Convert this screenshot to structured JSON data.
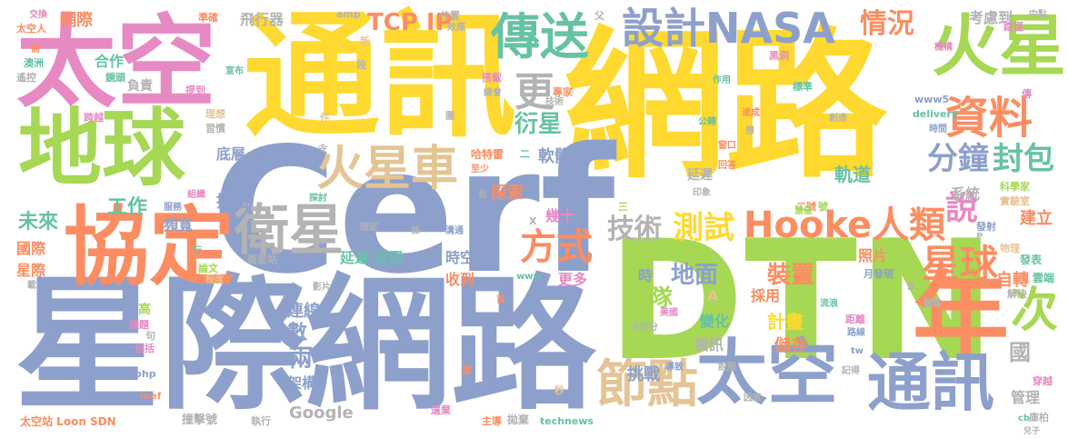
{
  "palette": {
    "green": "#a6d854",
    "blue": "#8da0cb",
    "yellow": "#ffd92f",
    "orange": "#fc8d62",
    "pink": "#e78ac3",
    "teal": "#66c2a5",
    "tan": "#e5c494",
    "gray": "#b3b3b3"
  },
  "words": [
    {
      "text": "網路",
      "color": "yellow"
    },
    {
      "text": "星際網路",
      "color": "blue"
    },
    {
      "text": "通訊",
      "color": "yellow"
    },
    {
      "text": "Cerf",
      "color": "blue"
    },
    {
      "text": "太空",
      "color": "pink"
    },
    {
      "text": "DTN",
      "color": "green"
    },
    {
      "text": "地球",
      "color": "green"
    },
    {
      "text": "年",
      "color": "orange"
    },
    {
      "text": "協定",
      "color": "orange"
    },
    {
      "text": "火星",
      "color": "green"
    },
    {
      "text": "太空",
      "color": "blue"
    },
    {
      "text": "通訊",
      "color": "blue"
    },
    {
      "text": "設計NASA",
      "color": "blue"
    },
    {
      "text": "傳送",
      "color": "teal"
    },
    {
      "text": "資料",
      "color": "orange"
    },
    {
      "text": "火星車",
      "color": "tan"
    },
    {
      "text": "衛星",
      "color": "gray"
    },
    {
      "text": "Hooke",
      "color": "orange"
    },
    {
      "text": "人類",
      "color": "orange"
    },
    {
      "text": "節點",
      "color": "tan"
    },
    {
      "text": "次",
      "color": "green"
    },
    {
      "text": "星球",
      "color": "orange"
    },
    {
      "text": "說",
      "color": "pink"
    },
    {
      "text": "情況",
      "color": "orange"
    },
    {
      "text": "封包",
      "color": "teal"
    },
    {
      "text": "分鐘",
      "color": "blue"
    },
    {
      "text": "方式",
      "color": "orange"
    },
    {
      "text": "測試",
      "color": "yellow"
    },
    {
      "text": "技術",
      "color": "gray"
    },
    {
      "text": "TCP IP",
      "color": "orange"
    },
    {
      "text": "更",
      "color": "gray"
    },
    {
      "text": "衍星",
      "color": "teal"
    },
    {
      "text": "團隊",
      "color": "green"
    },
    {
      "text": "裝置",
      "color": "orange"
    },
    {
      "text": "地面",
      "color": "blue"
    },
    {
      "text": "未來",
      "color": "teal"
    },
    {
      "text": "工作",
      "color": "teal"
    },
    {
      "text": "頻寬",
      "color": "blue"
    },
    {
      "text": "底層",
      "color": "blue"
    },
    {
      "text": "協定",
      "color": "blue"
    },
    {
      "text": "軟體",
      "color": "blue"
    },
    {
      "text": "軌道",
      "color": "teal"
    },
    {
      "text": "系統",
      "color": "gray"
    },
    {
      "text": "建立",
      "color": "orange"
    },
    {
      "text": "照片",
      "color": "orange"
    },
    {
      "text": "自轉",
      "color": "orange"
    },
    {
      "text": "計畫",
      "color": "yellow"
    },
    {
      "text": "變化",
      "color": "teal"
    },
    {
      "text": "儲存",
      "color": "orange"
    },
    {
      "text": "國",
      "color": "gray"
    },
    {
      "text": "挑戰",
      "color": "blue"
    },
    {
      "text": "資訊",
      "color": "gray"
    },
    {
      "text": "兩",
      "color": "blue"
    },
    {
      "text": "架構",
      "color": "blue"
    },
    {
      "text": "數",
      "color": "blue"
    },
    {
      "text": "連線",
      "color": "blue"
    },
    {
      "text": "Google",
      "color": "gray"
    },
    {
      "text": "管理",
      "color": "gray"
    },
    {
      "text": "時空",
      "color": "blue"
    },
    {
      "text": "收到",
      "color": "orange"
    },
    {
      "text": "更多",
      "color": "pink"
    },
    {
      "text": "延遲 容忍",
      "color": "teal"
    },
    {
      "text": "提出",
      "color": "blue"
    },
    {
      "text": "探索",
      "color": "orange"
    },
    {
      "text": "幾十",
      "color": "pink"
    },
    {
      "text": "採用",
      "color": "orange"
    },
    {
      "text": "國際",
      "color": "orange"
    },
    {
      "text": "星際",
      "color": "orange"
    },
    {
      "text": "網際",
      "color": "orange"
    },
    {
      "text": "合作",
      "color": "teal"
    },
    {
      "text": "負責",
      "color": "gray"
    },
    {
      "text": "飛行器",
      "color": "gray"
    },
    {
      "text": "考慮到",
      "color": "gray"
    },
    {
      "text": "延遲",
      "color": "gray"
    },
    {
      "text": "太空站 Loon SDN",
      "color": "orange"
    },
    {
      "text": "technews",
      "color": "teal"
    },
    {
      "text": "執行",
      "color": "gray"
    },
    {
      "text": "撞擊號",
      "color": "gray"
    },
    {
      "text": "主導",
      "color": "orange"
    },
    {
      "text": "拋棄",
      "color": "gray"
    },
    {
      "text": "深度",
      "color": "blue"
    },
    {
      "text": "科學",
      "color": "blue"
    },
    {
      "text": "衛星站",
      "color": "gray"
    },
    {
      "text": "影片",
      "color": "gray"
    },
    {
      "text": "哈特雷",
      "color": "orange"
    },
    {
      "text": "至少",
      "color": "orange"
    },
    {
      "text": "印象",
      "color": "gray"
    },
    {
      "text": "雲端",
      "color": "teal"
    },
    {
      "text": "發表",
      "color": "teal"
    },
    {
      "text": "穿越",
      "color": "pink"
    },
    {
      "text": "庫柏",
      "color": "gray"
    },
    {
      "text": "路徑",
      "color": "pink"
    },
    {
      "text": "標準",
      "color": "teal"
    },
    {
      "text": "公轉",
      "color": "teal"
    },
    {
      "text": "科學家",
      "color": "green"
    },
    {
      "text": "實驗室",
      "color": "tan"
    },
    {
      "text": "物理",
      "color": "tan"
    },
    {
      "text": "發射",
      "color": "blue"
    },
    {
      "text": "二號",
      "color": "orange"
    },
    {
      "text": "高",
      "color": "green"
    },
    {
      "text": "課題",
      "color": "pink"
    },
    {
      "text": "包括",
      "color": "pink"
    },
    {
      "text": "句",
      "color": "gray"
    },
    {
      "text": "php",
      "color": "blue"
    },
    {
      "text": "href",
      "color": "orange"
    },
    {
      "text": "www",
      "color": "teal"
    },
    {
      "text": "www5",
      "color": "blue"
    },
    {
      "text": "delivery",
      "color": "teal"
    },
    {
      "text": "首",
      "color": "orange"
    },
    {
      "text": "技術",
      "color": "gray"
    },
    {
      "text": "說服",
      "color": "gray"
    },
    {
      "text": "記得",
      "color": "gray"
    },
    {
      "text": "因素",
      "color": "gray"
    },
    {
      "text": "導致",
      "color": "blue"
    },
    {
      "text": "做",
      "color": "orange"
    },
    {
      "text": "秒",
      "color": "tan"
    },
    {
      "text": "跨越",
      "color": "pink"
    },
    {
      "text": "遙控",
      "color": "gray"
    },
    {
      "text": "澳洲",
      "color": "teal"
    },
    {
      "text": "前",
      "color": "orange"
    },
    {
      "text": "太空人",
      "color": "orange"
    },
    {
      "text": "交換",
      "color": "pink"
    },
    {
      "text": "鏡頭",
      "color": "teal"
    },
    {
      "text": "提到",
      "color": "pink"
    },
    {
      "text": "理想",
      "color": "tan"
    },
    {
      "text": "習慣",
      "color": "gray"
    },
    {
      "text": "服務",
      "color": "blue"
    },
    {
      "text": "組織",
      "color": "pink"
    },
    {
      "text": "探討",
      "color": "teal"
    },
    {
      "text": "論文",
      "color": "green"
    },
    {
      "text": "程度",
      "color": "tan"
    },
    {
      "text": "載",
      "color": "gray"
    },
    {
      "text": "行",
      "color": "teal"
    },
    {
      "text": "溝通",
      "color": "blue"
    },
    {
      "text": "固定",
      "color": "gray"
    },
    {
      "text": "條",
      "color": "gray"
    },
    {
      "text": "時",
      "color": "blue"
    },
    {
      "text": "A",
      "color": "tan"
    },
    {
      "text": "美國",
      "color": "pink"
    },
    {
      "text": "大部分",
      "color": "gray"
    },
    {
      "text": "流浪",
      "color": "teal"
    },
    {
      "text": "距離",
      "color": "pink"
    },
    {
      "text": "解決",
      "color": "gray"
    },
    {
      "text": "艱難",
      "color": "gray"
    },
    {
      "text": "傳回",
      "color": "orange"
    },
    {
      "text": "月發現",
      "color": "blue"
    },
    {
      "text": "B",
      "color": "gray"
    },
    {
      "text": "路線",
      "color": "blue"
    },
    {
      "text": "tw",
      "color": "blue"
    },
    {
      "text": "cb",
      "color": "teal"
    },
    {
      "text": "遺棄",
      "color": "pink"
    },
    {
      "text": "準確",
      "color": "orange"
    },
    {
      "text": "amp",
      "color": "gray"
    },
    {
      "text": "位置",
      "color": "gray"
    },
    {
      "text": "搭載",
      "color": "pink"
    },
    {
      "text": "專家",
      "color": "orange"
    },
    {
      "text": "總會",
      "color": "gray"
    },
    {
      "text": "黑洞",
      "color": "pink"
    },
    {
      "text": "機構",
      "color": "pink"
    },
    {
      "text": "中點",
      "color": "gray"
    },
    {
      "text": "作用",
      "color": "teal"
    },
    {
      "text": "創造",
      "color": "gray"
    },
    {
      "text": "時間",
      "color": "blue"
    },
    {
      "text": "窗口",
      "color": "orange"
    },
    {
      "text": "回答",
      "color": "orange"
    },
    {
      "text": "達成",
      "color": "orange"
    },
    {
      "text": "想",
      "color": "gray"
    },
    {
      "text": "慧星",
      "color": "green"
    },
    {
      "text": "P",
      "color": "gray"
    },
    {
      "text": "宣布",
      "color": "teal"
    },
    {
      "text": "新",
      "color": "tan"
    },
    {
      "text": "段",
      "color": "gray"
    },
    {
      "text": "件",
      "color": "tan"
    },
    {
      "text": "圖",
      "color": "gray"
    },
    {
      "text": "台",
      "color": "gray"
    },
    {
      "text": "父",
      "color": "gray"
    },
    {
      "text": "效應",
      "color": "gray"
    },
    {
      "text": "令",
      "color": "gray"
    },
    {
      "text": "傳",
      "color": "pink"
    },
    {
      "text": "兒子",
      "color": "gray"
    },
    {
      "text": "X",
      "color": "gray"
    },
    {
      "text": "三",
      "color": "green"
    },
    {
      "text": "二",
      "color": "teal"
    },
    {
      "text": "號",
      "color": "green"
    }
  ]
}
